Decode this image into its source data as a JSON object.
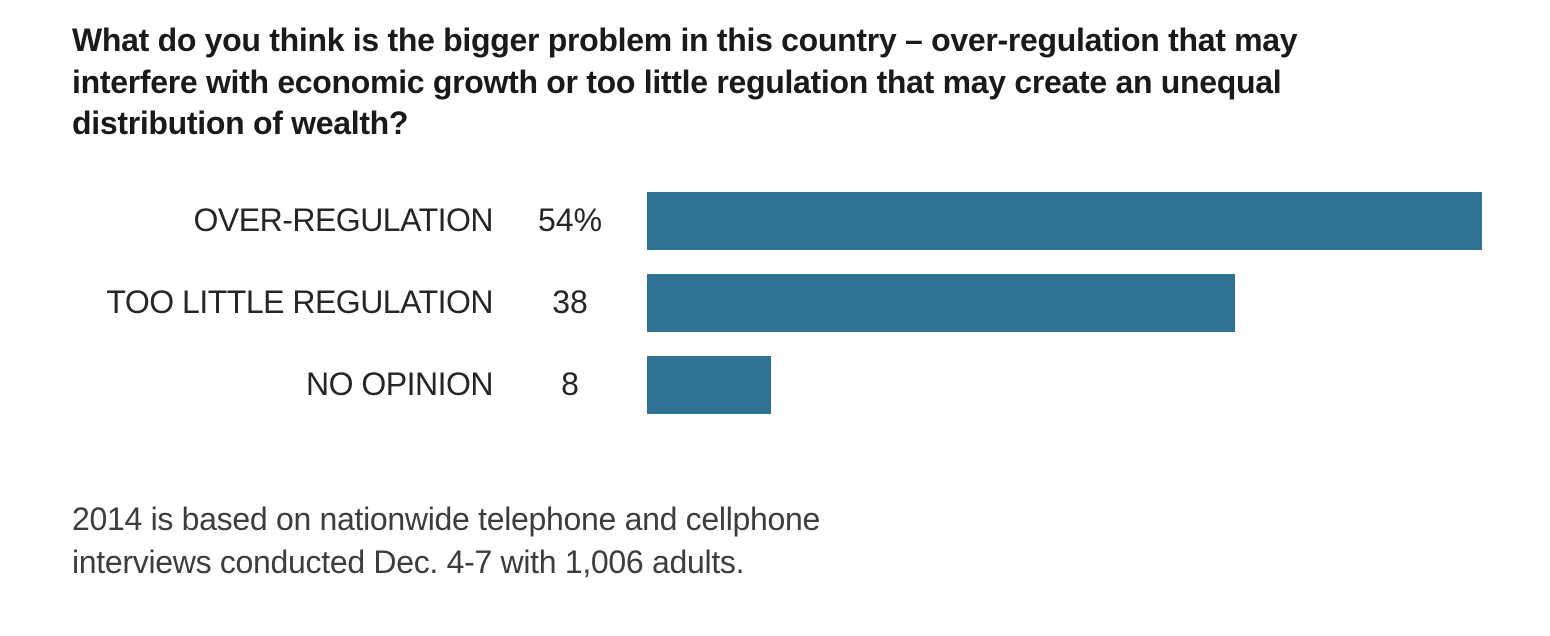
{
  "title": "What do you think is the bigger problem in this country – over-regulation that may interfere with economic growth or too little regulation that may create an unequal distribution of wealth?",
  "chart_data": {
    "type": "bar",
    "orientation": "horizontal",
    "categories": [
      "OVER-REGULATION",
      "TOO LITTLE REGULATION",
      "NO OPINION"
    ],
    "values": [
      54,
      38,
      8
    ],
    "value_labels": [
      "54%",
      "38",
      "8"
    ],
    "xlim": [
      0,
      54
    ],
    "grid": false,
    "legend": false,
    "bar_color": "#2F7294"
  },
  "footnote": {
    "lines": [
      "2014 is based on nationwide telephone and cellphone",
      "interviews conducted Dec. 4-7 with 1,006 adults."
    ]
  },
  "colors": {
    "background": "#ffffff",
    "bar": "#2F7294",
    "title_text": "#1a1a1a",
    "label_text": "#262626",
    "footnote_text": "#3d3d3d"
  }
}
